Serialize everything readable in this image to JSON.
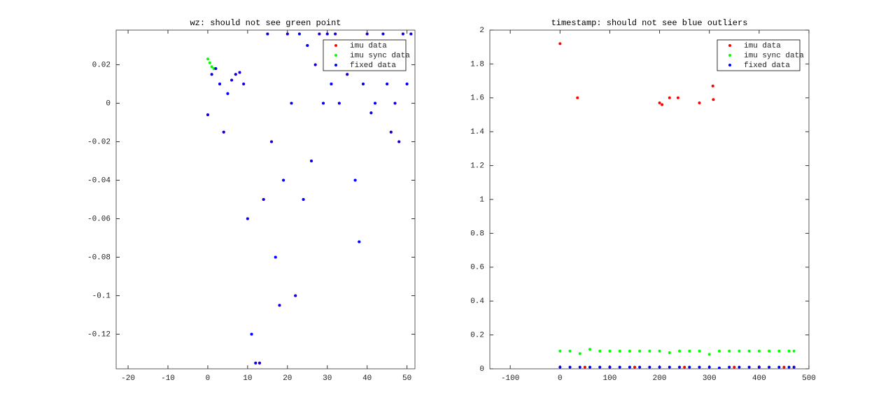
{
  "chart_data": [
    {
      "type": "scatter",
      "title": "wz: should not see green point",
      "xlim": [
        -23,
        52
      ],
      "xticks": [
        -20,
        -10,
        0,
        10,
        20,
        30,
        40,
        50
      ],
      "ylim": [
        -0.138,
        0.038
      ],
      "yticks": [
        -0.12,
        -0.1,
        -0.08,
        -0.06,
        -0.04,
        -0.02,
        0,
        0.02
      ],
      "grid": false,
      "legend": "northeast",
      "series": [
        {
          "name": "imu data",
          "color": "#ff0000",
          "x": [
            0,
            1,
            2,
            3,
            4,
            5,
            6,
            7,
            8,
            9,
            10,
            11,
            12,
            13,
            14,
            15,
            16,
            17,
            18,
            19,
            20,
            21,
            22,
            23,
            24,
            25,
            26,
            27,
            28,
            29,
            30,
            31,
            32,
            33,
            34,
            35,
            36,
            37,
            38,
            39,
            40,
            41,
            42,
            43,
            44,
            45,
            46,
            47,
            48,
            49,
            50,
            51
          ],
          "values": [
            -0.006,
            0.015,
            0.018,
            0.01,
            -0.015,
            0.005,
            0.012,
            0.015,
            0.016,
            0.01,
            -0.06,
            -0.12,
            -0.135,
            -0.135,
            -0.05,
            0.036,
            -0.02,
            -0.08,
            -0.105,
            -0.04,
            0.036,
            0,
            -0.1,
            0.036,
            -0.05,
            0.03,
            -0.03,
            0.02,
            0.036,
            0,
            0.036,
            0.01,
            0.036,
            0,
            0.02,
            0.015,
            0.03,
            -0.04,
            -0.072,
            0.01,
            0.036,
            -0.005,
            0,
            0.02,
            0.036,
            0.01,
            -0.015,
            0,
            -0.02,
            0.036,
            0.01,
            0.036
          ]
        },
        {
          "name": "imu sync data",
          "color": "#00ff00",
          "x": [
            0,
            0.5,
            1,
            1.5
          ],
          "values": [
            0.023,
            0.021,
            0.019,
            0.018
          ]
        },
        {
          "name": "fixed data",
          "color": "#0000ff",
          "x": [
            0,
            1,
            2,
            3,
            4,
            5,
            6,
            7,
            8,
            9,
            10,
            11,
            12,
            13,
            14,
            15,
            16,
            17,
            18,
            19,
            20,
            21,
            22,
            23,
            24,
            25,
            26,
            27,
            28,
            29,
            30,
            31,
            32,
            33,
            34,
            35,
            36,
            37,
            38,
            39,
            40,
            41,
            42,
            43,
            44,
            45,
            46,
            47,
            48,
            49,
            50,
            51
          ],
          "values": [
            -0.006,
            0.015,
            0.018,
            0.01,
            -0.015,
            0.005,
            0.012,
            0.015,
            0.016,
            0.01,
            -0.06,
            -0.12,
            -0.135,
            -0.135,
            -0.05,
            0.036,
            -0.02,
            -0.08,
            -0.105,
            -0.04,
            0.036,
            0,
            -0.1,
            0.036,
            -0.05,
            0.03,
            -0.03,
            0.02,
            0.036,
            0,
            0.036,
            0.01,
            0.036,
            0,
            0.02,
            0.015,
            0.03,
            -0.04,
            -0.072,
            0.01,
            0.036,
            -0.005,
            0,
            0.02,
            0.036,
            0.01,
            -0.015,
            0,
            -0.02,
            0.036,
            0.01,
            0.036
          ]
        }
      ]
    },
    {
      "type": "scatter",
      "title": "timestamp: should not see blue outliers",
      "xlim": [
        -141,
        500
      ],
      "xticks": [
        -100,
        0,
        100,
        200,
        300,
        400,
        500
      ],
      "ylim": [
        0,
        2
      ],
      "yticks": [
        0,
        0.2,
        0.4,
        0.6,
        0.8,
        1,
        1.2,
        1.4,
        1.6,
        1.8,
        2
      ],
      "grid": false,
      "legend": "northeast",
      "series": [
        {
          "name": "imu data",
          "color": "#ff0000",
          "x": [
            0,
            35,
            50,
            100,
            150,
            200,
            205,
            220,
            237,
            250,
            280,
            307,
            308,
            350,
            400,
            450,
            470
          ],
          "values": [
            1.92,
            1.6,
            0.01,
            0.01,
            0.01,
            1.57,
            1.56,
            1.6,
            1.6,
            0.01,
            1.57,
            1.67,
            1.59,
            0.01,
            0.01,
            0.01,
            0.01
          ]
        },
        {
          "name": "imu sync data",
          "color": "#00ff00",
          "x": [
            0,
            20,
            40,
            60,
            80,
            100,
            120,
            140,
            160,
            180,
            200,
            220,
            240,
            260,
            280,
            300,
            320,
            340,
            360,
            380,
            400,
            420,
            440,
            460,
            470
          ],
          "values": [
            0.105,
            0.105,
            0.09,
            0.115,
            0.105,
            0.105,
            0.105,
            0.105,
            0.105,
            0.105,
            0.105,
            0.095,
            0.105,
            0.105,
            0.105,
            0.085,
            0.105,
            0.105,
            0.105,
            0.105,
            0.105,
            0.105,
            0.105,
            0.105,
            0.105
          ]
        },
        {
          "name": "fixed data",
          "color": "#0000ff",
          "x": [
            0,
            20,
            40,
            60,
            80,
            100,
            120,
            140,
            160,
            180,
            200,
            220,
            240,
            260,
            280,
            300,
            320,
            340,
            360,
            380,
            400,
            420,
            440,
            460,
            470
          ],
          "values": [
            0.01,
            0.01,
            0.01,
            0.01,
            0.01,
            0.01,
            0.01,
            0.01,
            0.01,
            0.01,
            0.01,
            0.01,
            0.01,
            0.01,
            0.01,
            0.01,
            0.005,
            0.01,
            0.01,
            0.01,
            0.01,
            0.01,
            0.01,
            0.01,
            0.01
          ]
        }
      ]
    }
  ]
}
